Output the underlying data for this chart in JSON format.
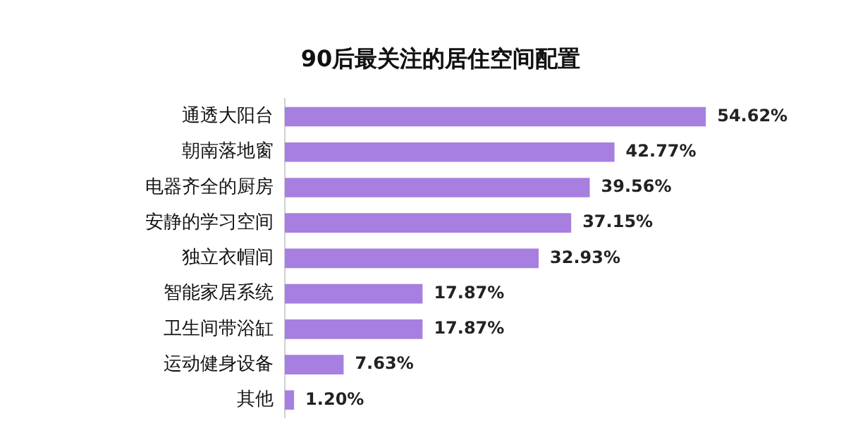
{
  "chart_data": {
    "type": "bar",
    "orientation": "horizontal",
    "title": "90后最关注的居住空间配置",
    "categories": [
      "通透大阳台",
      "朝南落地窗",
      "电器齐全的厨房",
      "安静的学习空间",
      "独立衣帽间",
      "智能家居系统",
      "卫生间带浴缸",
      "运动健身设备",
      "其他"
    ],
    "values": [
      54.62,
      42.77,
      39.56,
      37.15,
      32.93,
      17.87,
      17.87,
      7.63,
      1.2
    ],
    "value_labels": [
      "54.62%",
      "42.77%",
      "39.56%",
      "37.15%",
      "32.93%",
      "17.87%",
      "17.87%",
      "7.63%",
      "1.20%"
    ],
    "color": "#a77fe0"
  }
}
